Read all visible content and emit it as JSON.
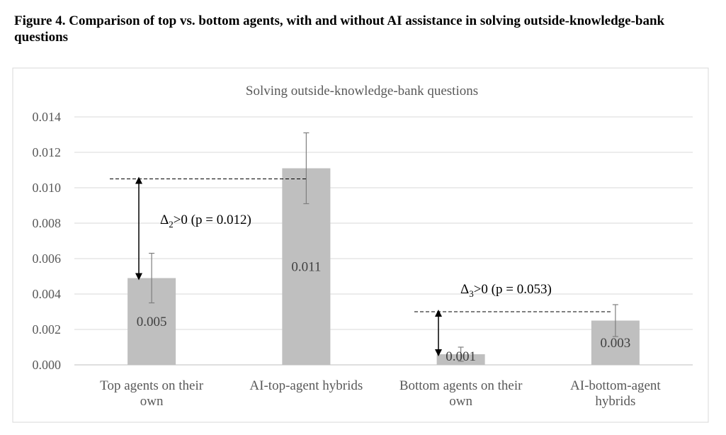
{
  "figure_title": "Figure 4. Comparison of top vs. bottom agents, with and without AI assistance in solving outside-knowledge-bank questions",
  "chart_data": {
    "type": "bar",
    "title": "Solving outside-knowledge-bank questions",
    "xlabel": "",
    "ylabel": "",
    "ylim": [
      0,
      0.014
    ],
    "yticks": [
      "0.000",
      "0.002",
      "0.004",
      "0.006",
      "0.008",
      "0.010",
      "0.012",
      "0.014"
    ],
    "grid": true,
    "legend": "none",
    "categories": [
      [
        "Top agents on their",
        "own"
      ],
      [
        "AI-top-agent hybrids"
      ],
      [
        "Bottom agents on their",
        "own"
      ],
      [
        "AI-bottom-agent",
        "hybrids"
      ]
    ],
    "values": [
      0.0049,
      0.0111,
      0.0006,
      0.0025
    ],
    "data_labels": [
      "0.005",
      "0.011",
      "0.001",
      "0.003"
    ],
    "error_bars": [
      [
        0.0035,
        0.0063
      ],
      [
        0.0091,
        0.0131
      ],
      [
        0.0002,
        0.001
      ],
      [
        0.0016,
        0.0034
      ]
    ],
    "bar_color": "#bfbfbf",
    "annotations": [
      {
        "delta": "Δ",
        "sub": "2",
        "text": ">0 (p = 0.012)",
        "from_value": 0.0049,
        "to_value": 0.0105,
        "bar_from": 0,
        "bar_to": 1
      },
      {
        "delta": "Δ",
        "sub": "3",
        "text": ">0 (p = 0.053)",
        "from_value": 0.0006,
        "to_value": 0.003,
        "bar_from": 2,
        "bar_to": 3
      }
    ]
  }
}
